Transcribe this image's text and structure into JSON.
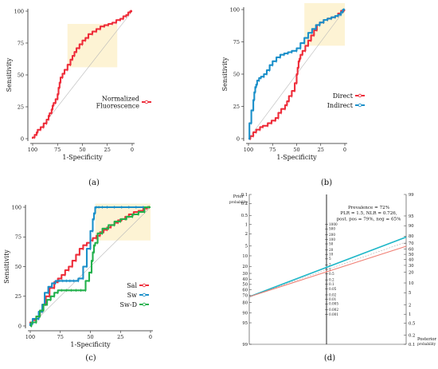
{
  "chart_data": [
    {
      "panel": "(a)",
      "type": "line",
      "xlabel": "1-Specificity",
      "ylabel": "Sensitivity",
      "xlim": [
        100,
        0
      ],
      "ylim": [
        0,
        100
      ],
      "xticks": [
        "100",
        "75",
        "50",
        "25",
        "0"
      ],
      "yticks": [
        "0",
        "25",
        "50",
        "75",
        "100"
      ],
      "highlight": {
        "x": [
          65,
          15
        ],
        "y": [
          56,
          90
        ],
        "color": "#fdf3d4"
      },
      "legend_position": "right",
      "series": [
        {
          "name": "Normalized\nFluorescence",
          "color": "#ee2d3a",
          "x": [
            98,
            96,
            95,
            92,
            89,
            86,
            84,
            83,
            81,
            80,
            79,
            77,
            75,
            74,
            73,
            72,
            70,
            68,
            65,
            62,
            60,
            58,
            56,
            53,
            50,
            47,
            44,
            40,
            36,
            32,
            28,
            24,
            20,
            16,
            12,
            9,
            6,
            4,
            2,
            1
          ],
          "y": [
            1,
            3,
            5,
            7,
            9,
            12,
            15,
            18,
            20,
            23,
            26,
            28,
            31,
            35,
            40,
            44,
            48,
            51,
            54,
            58,
            62,
            65,
            68,
            71,
            74,
            77,
            79,
            82,
            84,
            86,
            88,
            89,
            90,
            91,
            93,
            94,
            96,
            97,
            99,
            100
          ]
        }
      ]
    },
    {
      "panel": "(b)",
      "type": "line",
      "xlabel": "1-Specificity",
      "ylabel": "Sensitivity",
      "xlim": [
        100,
        0
      ],
      "ylim": [
        0,
        100
      ],
      "xticks": [
        "100",
        "75",
        "50",
        "25",
        "0"
      ],
      "yticks": [
        "0",
        "25",
        "50",
        "75",
        "100"
      ],
      "highlight": {
        "x": [
          42,
          0
        ],
        "y": [
          72,
          105
        ],
        "color": "#fdf3d4"
      },
      "legend_position": "right",
      "series": [
        {
          "name": "Direct",
          "color": "#ee2d3a",
          "x": [
            98,
            95,
            92,
            88,
            85,
            80,
            76,
            72,
            69,
            66,
            62,
            60,
            58,
            55,
            52,
            50,
            49,
            48,
            47,
            46,
            44,
            41,
            38,
            35,
            32,
            29,
            26,
            22,
            18,
            14,
            10,
            7,
            4,
            1
          ],
          "y": [
            0,
            2,
            5,
            7,
            9,
            10,
            12,
            14,
            16,
            20,
            23,
            26,
            29,
            33,
            37,
            43,
            50,
            55,
            60,
            62,
            65,
            68,
            72,
            76,
            80,
            84,
            88,
            90,
            92,
            93,
            94,
            95,
            97,
            99
          ]
        },
        {
          "name": "Indirect",
          "color": "#1a8fc9",
          "x": [
            99,
            97,
            95,
            94,
            93,
            92,
            91,
            89,
            87,
            84,
            81,
            78,
            75,
            71,
            67,
            63,
            59,
            55,
            50,
            46,
            42,
            38,
            34,
            30,
            26,
            22,
            18,
            14,
            10,
            7,
            4,
            2,
            1
          ],
          "y": [
            0,
            12,
            22,
            30,
            36,
            40,
            42,
            45,
            47,
            48,
            50,
            53,
            57,
            60,
            63,
            65,
            66,
            67,
            68,
            70,
            74,
            78,
            82,
            85,
            88,
            90,
            92,
            93,
            94,
            95,
            96,
            98,
            100
          ]
        }
      ]
    },
    {
      "panel": "(c)",
      "type": "line",
      "xlabel": "1-Specificity",
      "ylabel": "Sensitivity",
      "xlim": [
        100,
        0
      ],
      "ylim": [
        0,
        100
      ],
      "xticks": [
        "100",
        "75",
        "50",
        "25",
        "0"
      ],
      "yticks": [
        "0",
        "25",
        "50",
        "75",
        "100"
      ],
      "highlight": {
        "x": [
          46,
          0
        ],
        "y": [
          72,
          103
        ],
        "color": "#fdf3d4"
      },
      "legend_position": "right",
      "series": [
        {
          "name": "Sal",
          "color": "#ee2d3a",
          "x": [
            98,
            95,
            92,
            90,
            87,
            84,
            80,
            77,
            74,
            71,
            68,
            65,
            62,
            59,
            56,
            53,
            50,
            48,
            45,
            42,
            39,
            36,
            33,
            30,
            27,
            24,
            21,
            18,
            14,
            10,
            6,
            3,
            1
          ],
          "y": [
            3,
            5,
            8,
            12,
            18,
            25,
            32,
            37,
            40,
            43,
            47,
            50,
            55,
            60,
            65,
            68,
            70,
            72,
            74,
            76,
            79,
            81,
            83,
            85,
            87,
            89,
            90,
            92,
            94,
            96,
            97,
            99,
            100
          ]
        },
        {
          "name": "Sw",
          "color": "#1a8fc9",
          "x": [
            98,
            93,
            90,
            88,
            85,
            82,
            79,
            76,
            73,
            70,
            67,
            64,
            60,
            56,
            53,
            50,
            48,
            47,
            46,
            45,
            43,
            40,
            36,
            30,
            24,
            18,
            12,
            6,
            2
          ],
          "y": [
            2,
            6,
            12,
            18,
            28,
            33,
            36,
            38,
            38,
            38,
            38,
            38,
            38,
            40,
            50,
            65,
            80,
            90,
            95,
            100,
            100,
            100,
            100,
            100,
            100,
            100,
            100,
            100,
            100
          ]
        },
        {
          "name": "Sw-D",
          "color": "#22b04b",
          "x": [
            99,
            95,
            92,
            89,
            86,
            83,
            80,
            77,
            74,
            70,
            66,
            62,
            58,
            54,
            51,
            49,
            48,
            47,
            46,
            44,
            40,
            35,
            30,
            25,
            20,
            15,
            10,
            5,
            2
          ],
          "y": [
            0,
            3,
            8,
            13,
            18,
            22,
            25,
            28,
            30,
            30,
            30,
            30,
            30,
            30,
            38,
            45,
            55,
            62,
            68,
            70,
            78,
            82,
            85,
            88,
            90,
            92,
            94,
            96,
            100
          ]
        }
      ]
    },
    {
      "panel": "(d)",
      "type": "nomogram",
      "left_axis_title": "Prior\nprobability",
      "right_axis_title": "Posterior\nprobability",
      "left_ticks": [
        "0.1",
        "0.2",
        "0.5",
        "1",
        "2",
        "5",
        "10",
        "20",
        "30",
        "40",
        "50",
        "60",
        "70",
        "80",
        "90",
        "95",
        "99"
      ],
      "middle_ticks": [
        "1000",
        "500",
        "200",
        "100",
        "50",
        "20",
        "10",
        "5",
        "2",
        "1",
        "0.5",
        "0.2",
        "0.1",
        "0.05",
        "0.02",
        "0.01",
        "0.005",
        "0.002",
        "0.001"
      ],
      "right_ticks": [
        "99",
        "95",
        "90",
        "80",
        "70",
        "60",
        "50",
        "40",
        "30",
        "20",
        "10",
        "5",
        "2",
        "1",
        "0.5",
        "0.2",
        "0.1"
      ],
      "annotation": [
        "Prevalence = 72%",
        "PLR = 1.5, NLR = 0.726,",
        "post. pos = 79%, neg = 65%"
      ],
      "lines": [
        {
          "type": "positive",
          "color": "#1fb7c8",
          "prior": 72,
          "lr": 1.5,
          "posterior": 79
        },
        {
          "type": "negative",
          "color": "#f07f74",
          "prior": 72,
          "lr": 0.726,
          "posterior": 65
        }
      ]
    }
  ],
  "panel_labels": [
    "(a)",
    "(b)",
    "(c)",
    "(d)"
  ]
}
